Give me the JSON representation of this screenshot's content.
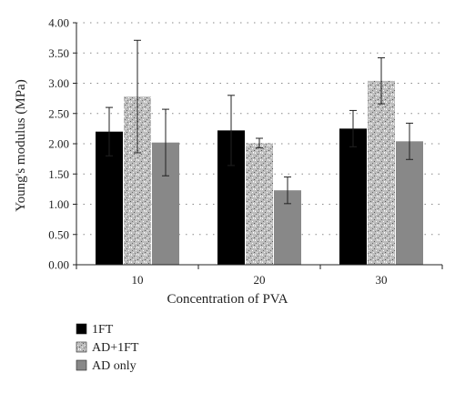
{
  "chart_data": {
    "type": "bar",
    "title": "",
    "xlabel": "Concentration of PVA",
    "ylabel": "Young's modulus (MPa)",
    "ylim": [
      0,
      4.0
    ],
    "yticks": [
      "0.00",
      "0.50",
      "1.00",
      "1.50",
      "2.00",
      "2.50",
      "3.00",
      "3.50",
      "4.00"
    ],
    "categories": [
      "10",
      "20",
      "30"
    ],
    "grid": true,
    "legend_position": "bottom-left",
    "series": [
      {
        "name": "1FT",
        "values": [
          2.2,
          2.22,
          2.25
        ],
        "errors": [
          0.4,
          0.58,
          0.3
        ],
        "color": "#000000",
        "pattern": "solid"
      },
      {
        "name": "AD+1FT",
        "values": [
          2.78,
          2.01,
          3.04
        ],
        "errors": [
          0.93,
          0.08,
          0.38
        ],
        "color": "#b5b5b5",
        "pattern": "speckled"
      },
      {
        "name": "AD only",
        "values": [
          2.02,
          1.23,
          2.04
        ],
        "errors": [
          0.55,
          0.22,
          0.3
        ],
        "color": "#888888",
        "pattern": "solid"
      }
    ]
  }
}
